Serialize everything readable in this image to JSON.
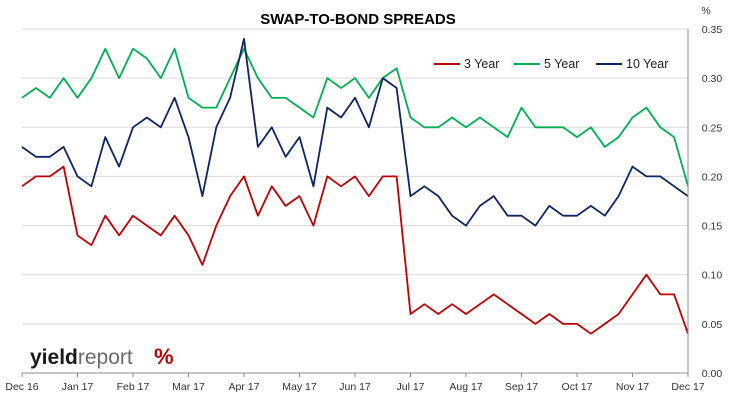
{
  "chart_data": {
    "type": "line",
    "title": "SWAP-TO-BOND SPREADS",
    "y_unit": "%",
    "ylim": [
      0,
      0.35
    ],
    "y_ticks": [
      "0.00",
      "0.05",
      "0.10",
      "0.15",
      "0.20",
      "0.25",
      "0.30",
      "0.35"
    ],
    "y_tick_values": [
      0,
      0.05,
      0.1,
      0.15,
      0.2,
      0.25,
      0.3,
      0.35
    ],
    "x_ticks": [
      "Dec 16",
      "Jan 17",
      "Feb 17",
      "Mar 17",
      "Apr 17",
      "May 17",
      "Jun 17",
      "Jul 17",
      "Aug 17",
      "Sep 17",
      "Oct 17",
      "Nov 17",
      "Dec 17"
    ],
    "grid": true,
    "legend_position": "top-right",
    "x_labels": [
      "Dec 16",
      "Dec 16",
      "Dec 16",
      "Dec 16",
      "Jan 17",
      "Jan 17",
      "Jan 17",
      "Jan 17",
      "Feb 17",
      "Feb 17",
      "Feb 17",
      "Feb 17",
      "Mar 17",
      "Mar 17",
      "Mar 17",
      "Mar 17",
      "Apr 17",
      "Apr 17",
      "Apr 17",
      "Apr 17",
      "May 17",
      "May 17",
      "May 17",
      "May 17",
      "Jun 17",
      "Jun 17",
      "Jun 17",
      "Jun 17",
      "Jul 17",
      "Jul 17",
      "Jul 17",
      "Jul 17",
      "Aug 17",
      "Aug 17",
      "Aug 17",
      "Aug 17",
      "Sep 17",
      "Sep 17",
      "Sep 17",
      "Sep 17",
      "Oct 17",
      "Oct 17",
      "Oct 17",
      "Oct 17",
      "Nov 17",
      "Nov 17",
      "Nov 17",
      "Nov 17",
      "Dec 17"
    ],
    "series": [
      {
        "name": "3 Year",
        "color": "#c00000",
        "values": [
          0.19,
          0.2,
          0.2,
          0.21,
          0.14,
          0.13,
          0.16,
          0.14,
          0.16,
          0.15,
          0.14,
          0.16,
          0.14,
          0.11,
          0.15,
          0.18,
          0.2,
          0.16,
          0.19,
          0.17,
          0.18,
          0.15,
          0.2,
          0.19,
          0.2,
          0.18,
          0.2,
          0.2,
          0.06,
          0.07,
          0.06,
          0.07,
          0.06,
          0.07,
          0.08,
          0.07,
          0.06,
          0.05,
          0.06,
          0.05,
          0.05,
          0.04,
          0.05,
          0.06,
          0.08,
          0.1,
          0.08,
          0.08,
          0.04
        ]
      },
      {
        "name": "5 Year",
        "color": "#00b050",
        "values": [
          0.28,
          0.29,
          0.28,
          0.3,
          0.28,
          0.3,
          0.33,
          0.3,
          0.33,
          0.32,
          0.3,
          0.33,
          0.28,
          0.27,
          0.27,
          0.3,
          0.33,
          0.3,
          0.28,
          0.28,
          0.27,
          0.26,
          0.3,
          0.29,
          0.3,
          0.28,
          0.3,
          0.31,
          0.26,
          0.25,
          0.25,
          0.26,
          0.25,
          0.26,
          0.25,
          0.24,
          0.27,
          0.25,
          0.25,
          0.25,
          0.24,
          0.25,
          0.23,
          0.24,
          0.26,
          0.27,
          0.25,
          0.24,
          0.19
        ]
      },
      {
        "name": "10 Year",
        "color": "#0d2566",
        "values": [
          0.23,
          0.22,
          0.22,
          0.23,
          0.2,
          0.19,
          0.24,
          0.21,
          0.25,
          0.26,
          0.25,
          0.28,
          0.24,
          0.18,
          0.25,
          0.28,
          0.34,
          0.23,
          0.25,
          0.22,
          0.24,
          0.19,
          0.27,
          0.26,
          0.28,
          0.25,
          0.3,
          0.29,
          0.18,
          0.19,
          0.18,
          0.16,
          0.15,
          0.17,
          0.18,
          0.16,
          0.16,
          0.15,
          0.17,
          0.16,
          0.16,
          0.17,
          0.16,
          0.18,
          0.21,
          0.2,
          0.2,
          0.19,
          0.18
        ]
      }
    ]
  },
  "brand": {
    "logo_text_1": "yield",
    "logo_text_2": "report",
    "logo_symbol": "%"
  }
}
